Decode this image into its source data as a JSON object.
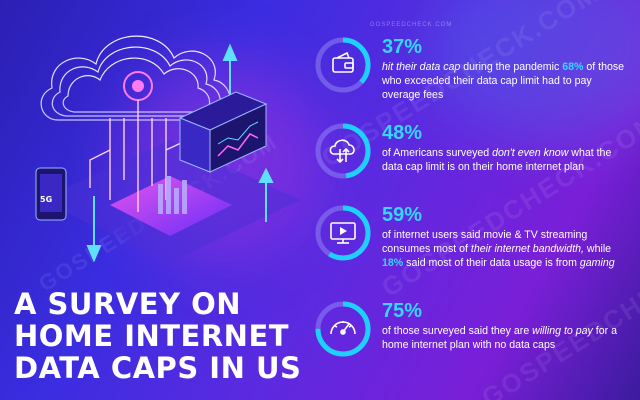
{
  "title": [
    "A SURVEY ON",
    "HOME INTERNET",
    "DATA CAPS IN US"
  ],
  "brand": "GOSPEEDCHECK.COM",
  "watermarks": [
    "GOSPEEDCHECK.COM",
    "GOSPEEDCHECK.COM",
    "GOSPEEDCHECK.COM",
    "GOSPEEDCHECK.COM"
  ],
  "illustration_label": "5G",
  "stats": [
    {
      "icon": "wallet-icon",
      "percent": "37%",
      "value": 0.37,
      "parts": [
        {
          "text": "hit their data cap",
          "style": "em"
        },
        {
          "text": " during the pandemic ",
          "style": "plain"
        },
        {
          "text": "68%",
          "style": "hl"
        },
        {
          "text": " of those who exceeded their data cap limit had to pay overage fees",
          "style": "plain"
        }
      ]
    },
    {
      "icon": "cloud-transfer-icon",
      "percent": "48%",
      "value": 0.48,
      "parts": [
        {
          "text": "of Americans surveyed ",
          "style": "plain"
        },
        {
          "text": "don't even know",
          "style": "em"
        },
        {
          "text": " what the data cap limit is on their home internet plan",
          "style": "plain"
        }
      ]
    },
    {
      "icon": "monitor-play-icon",
      "percent": "59%",
      "value": 0.59,
      "parts": [
        {
          "text": "of internet users said movie & TV streaming consumes most of ",
          "style": "plain"
        },
        {
          "text": "their internet bandwidth,",
          "style": "em"
        },
        {
          "text": " while ",
          "style": "plain"
        },
        {
          "text": "18%",
          "style": "hl"
        },
        {
          "text": " said most of their data usage is from ",
          "style": "plain"
        },
        {
          "text": "gaming",
          "style": "em"
        }
      ]
    },
    {
      "icon": "speedometer-icon",
      "percent": "75%",
      "value": 0.75,
      "parts": [
        {
          "text": "of those surveyed said they are ",
          "style": "plain"
        },
        {
          "text": "willing to pay",
          "style": "em"
        },
        {
          "text": " for a home internet plan with no data caps",
          "style": "plain"
        }
      ]
    }
  ],
  "colors": {
    "accent": "#38d6ff",
    "ring_track": "#8a7cf0",
    "ring_fill": "#1fd0ff",
    "text": "#ffffff"
  }
}
